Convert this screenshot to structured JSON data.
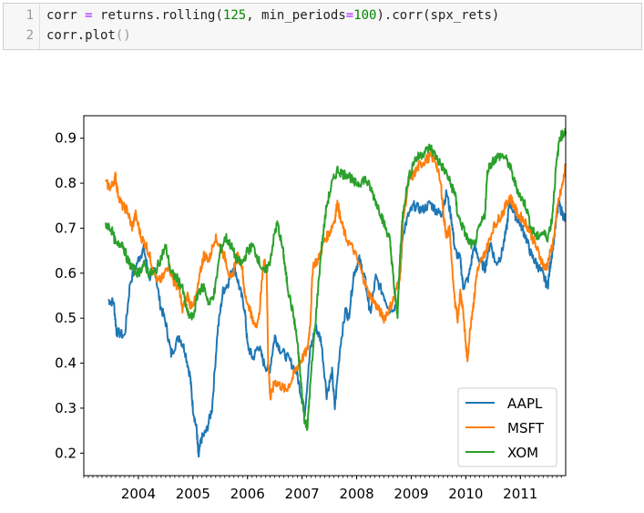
{
  "notebook": {
    "line_numbers": [
      "1",
      "2"
    ],
    "code": {
      "line1": {
        "a": "corr ",
        "op1": "=",
        "b": " returns.rolling(",
        "n1": "125",
        "c": ", min_periods",
        "op2": "=",
        "n2": "100",
        "d": ").corr(spx_rets)"
      },
      "line2": {
        "a": "corr.plot",
        "paren": "()"
      }
    }
  },
  "chart_data": {
    "type": "line",
    "x_tick_labels": [
      "2004",
      "2005",
      "2006",
      "2007",
      "2008",
      "2009",
      "2010",
      "2011"
    ],
    "y_tick_labels": [
      "0.2",
      "0.3",
      "0.4",
      "0.5",
      "0.6",
      "0.7",
      "0.8",
      "0.9"
    ],
    "xlim": [
      2003.0,
      2011.83
    ],
    "ylim": [
      0.15,
      0.95
    ],
    "legend_position": "lower-right",
    "grid": false,
    "series": [
      {
        "name": "AAPL",
        "color": "#1f77b4",
        "points": [
          [
            2003.45,
            0.54
          ],
          [
            2003.55,
            0.535
          ],
          [
            2003.6,
            0.47
          ],
          [
            2003.75,
            0.46
          ],
          [
            2003.85,
            0.58
          ],
          [
            2004.0,
            0.63
          ],
          [
            2004.1,
            0.655
          ],
          [
            2004.2,
            0.59
          ],
          [
            2004.3,
            0.61
          ],
          [
            2004.4,
            0.53
          ],
          [
            2004.5,
            0.49
          ],
          [
            2004.6,
            0.42
          ],
          [
            2004.75,
            0.46
          ],
          [
            2004.85,
            0.43
          ],
          [
            2004.95,
            0.37
          ],
          [
            2005.0,
            0.3
          ],
          [
            2005.07,
            0.25
          ],
          [
            2005.1,
            0.19
          ],
          [
            2005.15,
            0.23
          ],
          [
            2005.25,
            0.25
          ],
          [
            2005.35,
            0.3
          ],
          [
            2005.45,
            0.47
          ],
          [
            2005.55,
            0.56
          ],
          [
            2005.65,
            0.58
          ],
          [
            2005.75,
            0.62
          ],
          [
            2005.85,
            0.57
          ],
          [
            2005.95,
            0.52
          ],
          [
            2006.0,
            0.44
          ],
          [
            2006.1,
            0.41
          ],
          [
            2006.2,
            0.44
          ],
          [
            2006.3,
            0.4
          ],
          [
            2006.4,
            0.38
          ],
          [
            2006.5,
            0.46
          ],
          [
            2006.6,
            0.43
          ],
          [
            2006.75,
            0.41
          ],
          [
            2006.9,
            0.38
          ],
          [
            2007.0,
            0.32
          ],
          [
            2007.05,
            0.29
          ],
          [
            2007.15,
            0.43
          ],
          [
            2007.25,
            0.48
          ],
          [
            2007.35,
            0.45
          ],
          [
            2007.45,
            0.33
          ],
          [
            2007.55,
            0.38
          ],
          [
            2007.6,
            0.3
          ],
          [
            2007.7,
            0.44
          ],
          [
            2007.8,
            0.52
          ],
          [
            2007.85,
            0.5
          ],
          [
            2007.95,
            0.6
          ],
          [
            2008.05,
            0.63
          ],
          [
            2008.15,
            0.59
          ],
          [
            2008.2,
            0.55
          ],
          [
            2008.25,
            0.51
          ],
          [
            2008.35,
            0.59
          ],
          [
            2008.5,
            0.55
          ],
          [
            2008.6,
            0.52
          ],
          [
            2008.75,
            0.53
          ],
          [
            2008.85,
            0.69
          ],
          [
            2008.95,
            0.73
          ],
          [
            2009.05,
            0.75
          ],
          [
            2009.2,
            0.74
          ],
          [
            2009.35,
            0.755
          ],
          [
            2009.45,
            0.74
          ],
          [
            2009.55,
            0.73
          ],
          [
            2009.65,
            0.78
          ],
          [
            2009.75,
            0.71
          ],
          [
            2009.8,
            0.65
          ],
          [
            2009.9,
            0.63
          ],
          [
            2009.95,
            0.57
          ],
          [
            2010.05,
            0.59
          ],
          [
            2010.15,
            0.66
          ],
          [
            2010.25,
            0.63
          ],
          [
            2010.35,
            0.61
          ],
          [
            2010.45,
            0.67
          ],
          [
            2010.55,
            0.62
          ],
          [
            2010.65,
            0.64
          ],
          [
            2010.75,
            0.7
          ],
          [
            2010.8,
            0.76
          ],
          [
            2010.9,
            0.73
          ],
          [
            2011.0,
            0.71
          ],
          [
            2011.1,
            0.68
          ],
          [
            2011.2,
            0.64
          ],
          [
            2011.3,
            0.62
          ],
          [
            2011.4,
            0.6
          ],
          [
            2011.5,
            0.57
          ],
          [
            2011.55,
            0.62
          ],
          [
            2011.62,
            0.68
          ],
          [
            2011.7,
            0.755
          ],
          [
            2011.78,
            0.73
          ],
          [
            2011.82,
            0.72
          ]
        ]
      },
      {
        "name": "MSFT",
        "color": "#ff7f0e",
        "points": [
          [
            2003.4,
            0.8
          ],
          [
            2003.5,
            0.79
          ],
          [
            2003.58,
            0.815
          ],
          [
            2003.62,
            0.78
          ],
          [
            2003.7,
            0.75
          ],
          [
            2003.8,
            0.74
          ],
          [
            2003.88,
            0.7
          ],
          [
            2003.95,
            0.73
          ],
          [
            2004.05,
            0.68
          ],
          [
            2004.15,
            0.66
          ],
          [
            2004.25,
            0.62
          ],
          [
            2004.35,
            0.58
          ],
          [
            2004.45,
            0.59
          ],
          [
            2004.55,
            0.62
          ],
          [
            2004.65,
            0.58
          ],
          [
            2004.75,
            0.57
          ],
          [
            2004.8,
            0.52
          ],
          [
            2004.9,
            0.55
          ],
          [
            2004.95,
            0.53
          ],
          [
            2005.05,
            0.54
          ],
          [
            2005.15,
            0.61
          ],
          [
            2005.2,
            0.64
          ],
          [
            2005.3,
            0.63
          ],
          [
            2005.4,
            0.68
          ],
          [
            2005.5,
            0.66
          ],
          [
            2005.6,
            0.63
          ],
          [
            2005.7,
            0.58
          ],
          [
            2005.8,
            0.64
          ],
          [
            2005.9,
            0.62
          ],
          [
            2005.95,
            0.55
          ],
          [
            2006.05,
            0.52
          ],
          [
            2006.1,
            0.49
          ],
          [
            2006.2,
            0.49
          ],
          [
            2006.3,
            0.63
          ],
          [
            2006.35,
            0.61
          ],
          [
            2006.38,
            0.4
          ],
          [
            2006.42,
            0.32
          ],
          [
            2006.5,
            0.36
          ],
          [
            2006.6,
            0.35
          ],
          [
            2006.7,
            0.34
          ],
          [
            2006.8,
            0.36
          ],
          [
            2006.9,
            0.39
          ],
          [
            2007.0,
            0.41
          ],
          [
            2007.1,
            0.43
          ],
          [
            2007.15,
            0.49
          ],
          [
            2007.2,
            0.62
          ],
          [
            2007.3,
            0.63
          ],
          [
            2007.4,
            0.67
          ],
          [
            2007.5,
            0.69
          ],
          [
            2007.6,
            0.72
          ],
          [
            2007.65,
            0.76
          ],
          [
            2007.7,
            0.72
          ],
          [
            2007.8,
            0.68
          ],
          [
            2007.95,
            0.65
          ],
          [
            2008.1,
            0.6
          ],
          [
            2008.2,
            0.56
          ],
          [
            2008.3,
            0.54
          ],
          [
            2008.4,
            0.52
          ],
          [
            2008.5,
            0.5
          ],
          [
            2008.6,
            0.52
          ],
          [
            2008.7,
            0.55
          ],
          [
            2008.8,
            0.6
          ],
          [
            2008.85,
            0.72
          ],
          [
            2008.95,
            0.8
          ],
          [
            2009.05,
            0.82
          ],
          [
            2009.15,
            0.84
          ],
          [
            2009.25,
            0.85
          ],
          [
            2009.35,
            0.86
          ],
          [
            2009.45,
            0.85
          ],
          [
            2009.55,
            0.79
          ],
          [
            2009.6,
            0.72
          ],
          [
            2009.65,
            0.68
          ],
          [
            2009.7,
            0.7
          ],
          [
            2009.8,
            0.53
          ],
          [
            2009.85,
            0.5
          ],
          [
            2009.9,
            0.56
          ],
          [
            2009.95,
            0.52
          ],
          [
            2010.0,
            0.44
          ],
          [
            2010.03,
            0.41
          ],
          [
            2010.1,
            0.5
          ],
          [
            2010.15,
            0.54
          ],
          [
            2010.2,
            0.6
          ],
          [
            2010.3,
            0.63
          ],
          [
            2010.4,
            0.66
          ],
          [
            2010.5,
            0.7
          ],
          [
            2010.6,
            0.72
          ],
          [
            2010.7,
            0.74
          ],
          [
            2010.8,
            0.77
          ],
          [
            2010.85,
            0.76
          ],
          [
            2010.95,
            0.73
          ],
          [
            2011.05,
            0.72
          ],
          [
            2011.15,
            0.7
          ],
          [
            2011.25,
            0.67
          ],
          [
            2011.35,
            0.64
          ],
          [
            2011.45,
            0.61
          ],
          [
            2011.5,
            0.62
          ],
          [
            2011.6,
            0.67
          ],
          [
            2011.7,
            0.76
          ],
          [
            2011.78,
            0.8
          ],
          [
            2011.83,
            0.84
          ]
        ]
      },
      {
        "name": "XOM",
        "color": "#2ca02c",
        "points": [
          [
            2003.4,
            0.71
          ],
          [
            2003.5,
            0.7
          ],
          [
            2003.6,
            0.66
          ],
          [
            2003.7,
            0.67
          ],
          [
            2003.8,
            0.63
          ],
          [
            2003.9,
            0.61
          ],
          [
            2004.0,
            0.6
          ],
          [
            2004.1,
            0.62
          ],
          [
            2004.2,
            0.6
          ],
          [
            2004.3,
            0.6
          ],
          [
            2004.4,
            0.63
          ],
          [
            2004.5,
            0.66
          ],
          [
            2004.6,
            0.6
          ],
          [
            2004.7,
            0.59
          ],
          [
            2004.8,
            0.57
          ],
          [
            2004.9,
            0.51
          ],
          [
            2005.0,
            0.5
          ],
          [
            2005.1,
            0.56
          ],
          [
            2005.2,
            0.57
          ],
          [
            2005.3,
            0.53
          ],
          [
            2005.4,
            0.56
          ],
          [
            2005.5,
            0.65
          ],
          [
            2005.6,
            0.68
          ],
          [
            2005.7,
            0.66
          ],
          [
            2005.8,
            0.63
          ],
          [
            2005.9,
            0.62
          ],
          [
            2006.0,
            0.65
          ],
          [
            2006.1,
            0.66
          ],
          [
            2006.2,
            0.63
          ],
          [
            2006.3,
            0.6
          ],
          [
            2006.4,
            0.62
          ],
          [
            2006.5,
            0.69
          ],
          [
            2006.55,
            0.71
          ],
          [
            2006.65,
            0.65
          ],
          [
            2006.7,
            0.6
          ],
          [
            2006.75,
            0.56
          ],
          [
            2006.85,
            0.5
          ],
          [
            2006.9,
            0.46
          ],
          [
            2006.95,
            0.4
          ],
          [
            2007.0,
            0.33
          ],
          [
            2007.05,
            0.27
          ],
          [
            2007.1,
            0.26
          ],
          [
            2007.15,
            0.35
          ],
          [
            2007.25,
            0.5
          ],
          [
            2007.35,
            0.65
          ],
          [
            2007.45,
            0.75
          ],
          [
            2007.55,
            0.8
          ],
          [
            2007.65,
            0.83
          ],
          [
            2007.75,
            0.82
          ],
          [
            2007.85,
            0.82
          ],
          [
            2007.95,
            0.8
          ],
          [
            2008.05,
            0.8
          ],
          [
            2008.15,
            0.81
          ],
          [
            2008.25,
            0.79
          ],
          [
            2008.35,
            0.76
          ],
          [
            2008.45,
            0.73
          ],
          [
            2008.5,
            0.71
          ],
          [
            2008.6,
            0.68
          ],
          [
            2008.65,
            0.62
          ],
          [
            2008.7,
            0.55
          ],
          [
            2008.75,
            0.51
          ],
          [
            2008.8,
            0.65
          ],
          [
            2008.85,
            0.74
          ],
          [
            2008.95,
            0.81
          ],
          [
            2009.05,
            0.85
          ],
          [
            2009.15,
            0.86
          ],
          [
            2009.25,
            0.87
          ],
          [
            2009.35,
            0.88
          ],
          [
            2009.45,
            0.86
          ],
          [
            2009.55,
            0.84
          ],
          [
            2009.65,
            0.82
          ],
          [
            2009.75,
            0.79
          ],
          [
            2009.8,
            0.78
          ],
          [
            2009.85,
            0.73
          ],
          [
            2009.95,
            0.7
          ],
          [
            2010.05,
            0.67
          ],
          [
            2010.15,
            0.66
          ],
          [
            2010.25,
            0.7
          ],
          [
            2010.35,
            0.73
          ],
          [
            2010.4,
            0.83
          ],
          [
            2010.5,
            0.85
          ],
          [
            2010.6,
            0.86
          ],
          [
            2010.7,
            0.86
          ],
          [
            2010.8,
            0.84
          ],
          [
            2010.9,
            0.8
          ],
          [
            2011.0,
            0.77
          ],
          [
            2011.1,
            0.75
          ],
          [
            2011.2,
            0.7
          ],
          [
            2011.3,
            0.68
          ],
          [
            2011.4,
            0.69
          ],
          [
            2011.5,
            0.68
          ],
          [
            2011.58,
            0.72
          ],
          [
            2011.65,
            0.83
          ],
          [
            2011.72,
            0.9
          ],
          [
            2011.78,
            0.91
          ],
          [
            2011.83,
            0.915
          ]
        ]
      }
    ]
  }
}
